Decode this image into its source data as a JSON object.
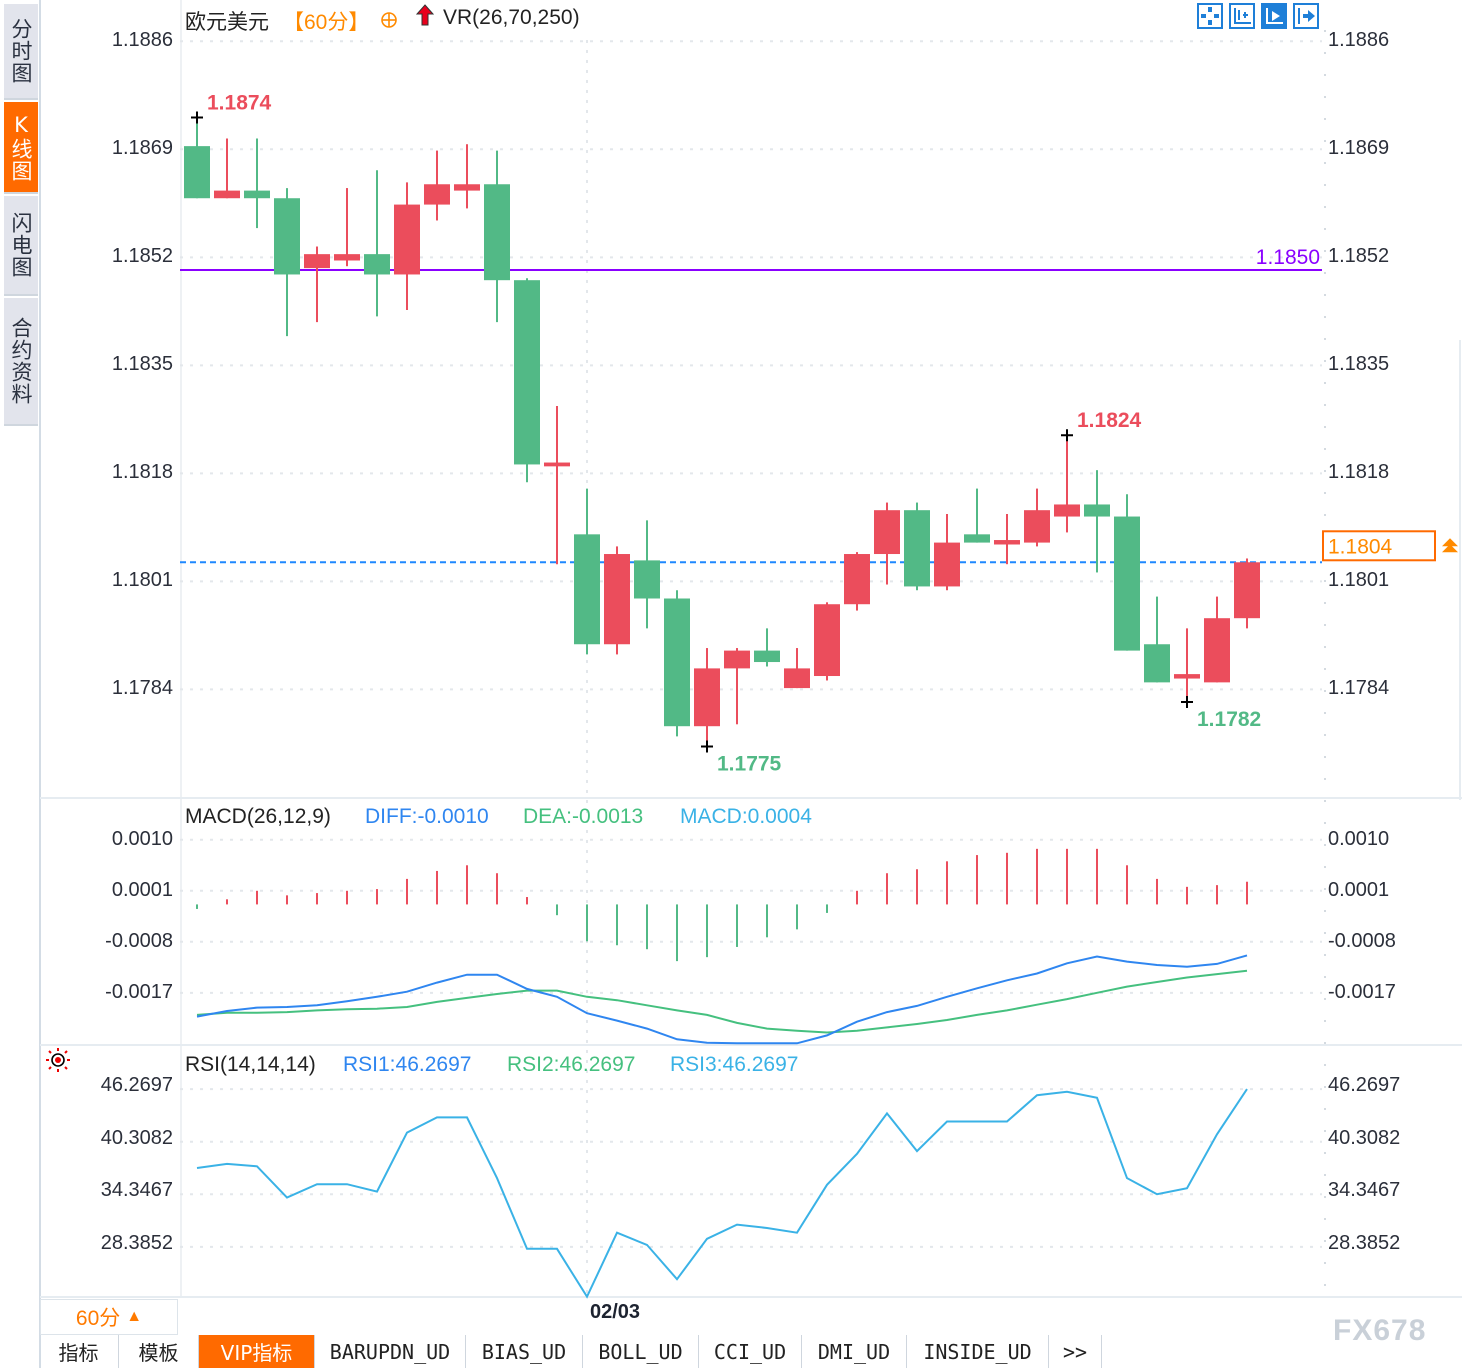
{
  "sidebar": {
    "tabs": [
      {
        "label": "分时图",
        "active": false
      },
      {
        "label": "K线图",
        "active": true
      },
      {
        "label": "闪电图",
        "active": false
      },
      {
        "label": "合约资料",
        "active": false
      }
    ]
  },
  "header": {
    "symbol": "欧元美元",
    "period": "【60分】",
    "add_icon": "circle-plus-icon",
    "arrow_icon": "red-up-arrow-icon",
    "indicator": "VR(26,70,250)"
  },
  "toolbar_icons": [
    "move-cross-icon",
    "zoom-axis-icon",
    "play-forward-icon",
    "jump-to-end-icon"
  ],
  "colors": {
    "up": "#eb4d5c",
    "down": "#52b986",
    "reference_line": "#8a00ff",
    "current_price_line": "#1e88ff",
    "accent": "#ff6a00",
    "diff": "#2f86f0",
    "dea": "#45c07f",
    "rsi": "#3ab2e6"
  },
  "chart_data": [
    {
      "type": "candlestick",
      "ylim": [
        1.17669,
        1.18925
      ],
      "y_ticks": [
        "1.1886",
        "1.1869",
        "1.1852",
        "1.1835",
        "1.1818",
        "1.1801",
        "1.1784"
      ],
      "x_labels": [
        {
          "index": 13,
          "label": "02/03"
        }
      ],
      "grid": true,
      "candles": [
        [
          1.18695,
          1.1874,
          1.18613,
          1.18613
        ],
        [
          1.18613,
          1.18707,
          1.18613,
          1.18625
        ],
        [
          1.18625,
          1.18707,
          1.18566,
          1.18613
        ],
        [
          1.18613,
          1.18629,
          1.18396,
          1.18493
        ],
        [
          1.18503,
          1.18537,
          1.18418,
          1.18525
        ],
        [
          1.18515,
          1.18629,
          1.18506,
          1.18525
        ],
        [
          1.18525,
          1.18657,
          1.18427,
          1.18493
        ],
        [
          1.18493,
          1.18638,
          1.18437,
          1.18603
        ],
        [
          1.18603,
          1.18688,
          1.18578,
          1.18635
        ],
        [
          1.18625,
          1.18698,
          1.18597,
          1.18635
        ],
        [
          1.18635,
          1.18688,
          1.18418,
          1.18484
        ],
        [
          1.18484,
          1.18487,
          1.18166,
          1.18194
        ],
        [
          1.18191,
          1.18286,
          1.18037,
          1.18197
        ],
        [
          1.18084,
          1.18156,
          1.17895,
          1.17911
        ],
        [
          1.17911,
          1.18065,
          1.17895,
          1.18053
        ],
        [
          1.18043,
          1.18106,
          1.17936,
          1.17983
        ],
        [
          1.17983,
          1.17996,
          1.17766,
          1.17782
        ],
        [
          1.17782,
          1.17905,
          1.1775,
          1.17873
        ],
        [
          1.17873,
          1.17905,
          1.17785,
          1.17901
        ],
        [
          1.17901,
          1.17936,
          1.17876,
          1.17883
        ],
        [
          1.17842,
          1.17905,
          1.17842,
          1.17873
        ],
        [
          1.17861,
          1.17977,
          1.17854,
          1.17974
        ],
        [
          1.17974,
          1.18056,
          1.17964,
          1.18053
        ],
        [
          1.18053,
          1.18134,
          1.18005,
          1.18122
        ],
        [
          1.18122,
          1.18134,
          1.17996,
          1.18002
        ],
        [
          1.18002,
          1.18116,
          1.17996,
          1.18071
        ],
        [
          1.18084,
          1.18156,
          1.18071,
          1.18071
        ],
        [
          1.18068,
          1.18116,
          1.18037,
          1.18075
        ],
        [
          1.18071,
          1.18156,
          1.18065,
          1.18122
        ],
        [
          1.18112,
          1.1824,
          1.18087,
          1.18131
        ],
        [
          1.18131,
          1.18185,
          1.18024,
          1.18112
        ],
        [
          1.18112,
          1.18147,
          1.17901,
          1.17901
        ],
        [
          1.17911,
          1.17986,
          1.17851,
          1.17851
        ],
        [
          1.17857,
          1.17936,
          1.1782,
          1.17864
        ],
        [
          1.17851,
          1.17986,
          1.17851,
          1.17952
        ],
        [
          1.17952,
          1.18046,
          1.17936,
          1.1804
        ]
      ],
      "extremes": [
        {
          "index": 0,
          "value": 1.1874,
          "label": "1.1874",
          "kind": "high"
        },
        {
          "index": 29,
          "value": 1.1824,
          "label": "1.1824",
          "kind": "high"
        },
        {
          "index": 17,
          "value": 1.1775,
          "label": "1.1775",
          "kind": "low"
        },
        {
          "index": 33,
          "value": 1.1782,
          "label": "1.1782",
          "kind": "low"
        }
      ],
      "reference_line": {
        "value": 1.185,
        "label": "1.1850"
      },
      "current_price": {
        "value": 1.1804,
        "label": "1.1804"
      }
    },
    {
      "type": "bar+line",
      "title": "MACD(26,12,9)",
      "legend": [
        {
          "label": "DIFF:-0.0010"
        },
        {
          "label": "DEA:-0.0013"
        },
        {
          "label": "MACD:0.0004"
        }
      ],
      "ylim": [
        -0.00262,
        0.0017
      ],
      "y_ticks": [
        "0.0010",
        "0.0001",
        "-0.0008",
        "-0.0017"
      ],
      "macd": [
        -8e-05,
        9e-05,
        0.00024,
        0.00016,
        0.0002,
        0.00024,
        0.00027,
        0.00045,
        0.00059,
        0.00069,
        0.00055,
        0.00013,
        -0.00019,
        -0.00065,
        -0.00072,
        -0.00079,
        -0.001,
        -0.00093,
        -0.00075,
        -0.00058,
        -0.00044,
        -0.00015,
        0.00024,
        0.00055,
        0.00062,
        0.00076,
        0.00087,
        0.00091,
        0.00098,
        0.00098,
        0.00098,
        0.00069,
        0.00045,
        0.00031,
        0.00034,
        0.0004
      ],
      "diff": [
        -0.00212,
        -0.00202,
        -0.00196,
        -0.00195,
        -0.00192,
        -0.00185,
        -0.00177,
        -0.00168,
        -0.00152,
        -0.00138,
        -0.00138,
        -0.00163,
        -0.00177,
        -0.00206,
        -0.00219,
        -0.00233,
        -0.00252,
        -0.00258,
        -0.00259,
        -0.00259,
        -0.00259,
        -0.00245,
        -0.00221,
        -0.00204,
        -0.00193,
        -0.00177,
        -0.00162,
        -0.00148,
        -0.00136,
        -0.00118,
        -0.00106,
        -0.00115,
        -0.00121,
        -0.00124,
        -0.00119,
        -0.00104
      ],
      "dea": [
        -0.00209,
        -0.00205,
        -0.00205,
        -0.00204,
        -0.00201,
        -0.00199,
        -0.00198,
        -0.00195,
        -0.00186,
        -0.00179,
        -0.00172,
        -0.00166,
        -0.00166,
        -0.00177,
        -0.00183,
        -0.00192,
        -0.00201,
        -0.00209,
        -0.00223,
        -0.00233,
        -0.00237,
        -0.0024,
        -0.00237,
        -0.00231,
        -0.00225,
        -0.00218,
        -0.00209,
        -0.00201,
        -0.00191,
        -0.00181,
        -0.0017,
        -0.00159,
        -0.00151,
        -0.00143,
        -0.00137,
        -0.00131
      ]
    },
    {
      "type": "line",
      "title": "RSI(14,14,14)",
      "legend": [
        {
          "label": "RSI1:46.2697"
        },
        {
          "label": "RSI2:46.2697"
        },
        {
          "label": "RSI3:46.2697"
        }
      ],
      "ylim": [
        22.7,
        50.93
      ],
      "y_ticks": [
        "46.2697",
        "40.3082",
        "34.3467",
        "28.3852"
      ],
      "rsi": [
        37.33,
        37.79,
        37.52,
        33.97,
        35.49,
        35.49,
        34.65,
        41.34,
        43.06,
        43.06,
        36.18,
        28.16,
        28.16,
        22.73,
        29.99,
        28.61,
        24.72,
        29.3,
        30.91,
        30.52,
        29.99,
        35.42,
        38.93,
        43.52,
        39.24,
        42.6,
        42.6,
        42.6,
        45.58,
        45.96,
        45.28,
        36.18,
        34.35,
        35.03,
        41.15,
        46.27
      ]
    }
  ],
  "footer": {
    "period_selector": "60分",
    "period_arrow": "▲",
    "date_label": "02/03",
    "tabs": [
      {
        "label": "指标",
        "active": false
      },
      {
        "label": "模板",
        "active": false
      },
      {
        "label": "VIP指标",
        "active": true
      },
      {
        "label": "BARUPDN_UD",
        "active": false
      },
      {
        "label": "BIAS_UD",
        "active": false
      },
      {
        "label": "BOLL_UD",
        "active": false
      },
      {
        "label": "CCI_UD",
        "active": false
      },
      {
        "label": "DMI_UD",
        "active": false
      },
      {
        "label": "INSIDE_UD",
        "active": false
      },
      {
        "label": ">>",
        "active": false
      }
    ],
    "watermark": "FX678"
  }
}
